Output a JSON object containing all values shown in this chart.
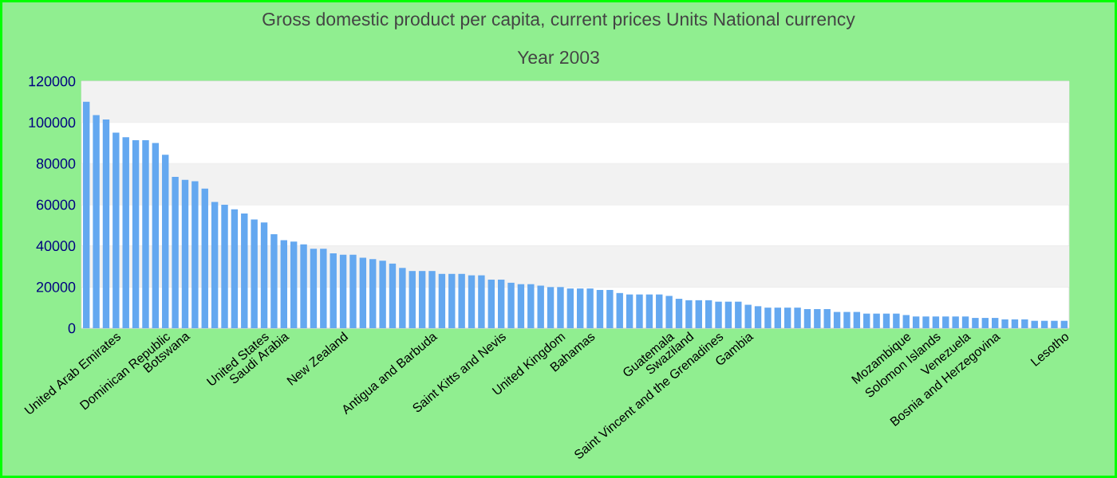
{
  "chart_data": {
    "type": "bar",
    "title": "Gross domestic product per capita, current prices Units National currency",
    "subtitle": "Year 2003",
    "categories": [
      null,
      null,
      null,
      "United Arab Emirates",
      null,
      null,
      null,
      null,
      "Dominican Republic",
      null,
      "Botswana",
      null,
      null,
      null,
      null,
      null,
      null,
      null,
      "United States",
      null,
      "Saudi Arabia",
      null,
      null,
      null,
      null,
      null,
      "New Zealand",
      null,
      null,
      null,
      null,
      null,
      null,
      null,
      null,
      "Antigua and Barbuda",
      null,
      null,
      null,
      null,
      null,
      null,
      "Saint Kitts and Nevis",
      null,
      null,
      null,
      null,
      null,
      "United Kingdom",
      null,
      null,
      "Bahamas",
      null,
      null,
      null,
      null,
      null,
      null,
      null,
      "Guatemala",
      null,
      "Swaziland",
      null,
      null,
      "Saint Vincent and the Grenadines",
      null,
      null,
      "Gambia",
      null,
      null,
      null,
      null,
      null,
      null,
      null,
      null,
      null,
      null,
      null,
      null,
      null,
      null,
      null,
      "Mozambique",
      null,
      null,
      "Solomon Islands",
      null,
      null,
      "Venezuela",
      null,
      null,
      "Bosnia and Herzegovina",
      null,
      null,
      null,
      null,
      null,
      null,
      "Lesotho"
    ],
    "values": [
      110000,
      103500,
      101400,
      95000,
      92800,
      91400,
      91400,
      90000,
      84300,
      73500,
      72100,
      71400,
      67800,
      61400,
      60000,
      57800,
      55700,
      52800,
      51400,
      45700,
      42800,
      42100,
      40700,
      38600,
      38600,
      36400,
      35700,
      35700,
      34300,
      33600,
      32800,
      31400,
      29300,
      27800,
      27800,
      27800,
      26400,
      26400,
      26400,
      25700,
      25700,
      23600,
      23600,
      22100,
      21400,
      21400,
      20700,
      20000,
      20000,
      19300,
      19300,
      19300,
      18600,
      18600,
      17100,
      16400,
      16400,
      16400,
      16400,
      15700,
      14300,
      13600,
      13600,
      13600,
      12900,
      12900,
      12900,
      11400,
      10700,
      10000,
      10000,
      10000,
      10000,
      9300,
      9300,
      9300,
      7900,
      7900,
      7900,
      7100,
      7100,
      7100,
      7100,
      6400,
      5700,
      5700,
      5700,
      5700,
      5700,
      5700,
      5000,
      5000,
      5000,
      4300,
      4300,
      4300,
      3600,
      3600,
      3600,
      3600
    ],
    "color": "#64a8f0",
    "ylim": [
      0,
      120000
    ],
    "yticks": [
      0,
      20000,
      40000,
      60000,
      80000,
      100000,
      120000
    ],
    "grid": "y"
  }
}
